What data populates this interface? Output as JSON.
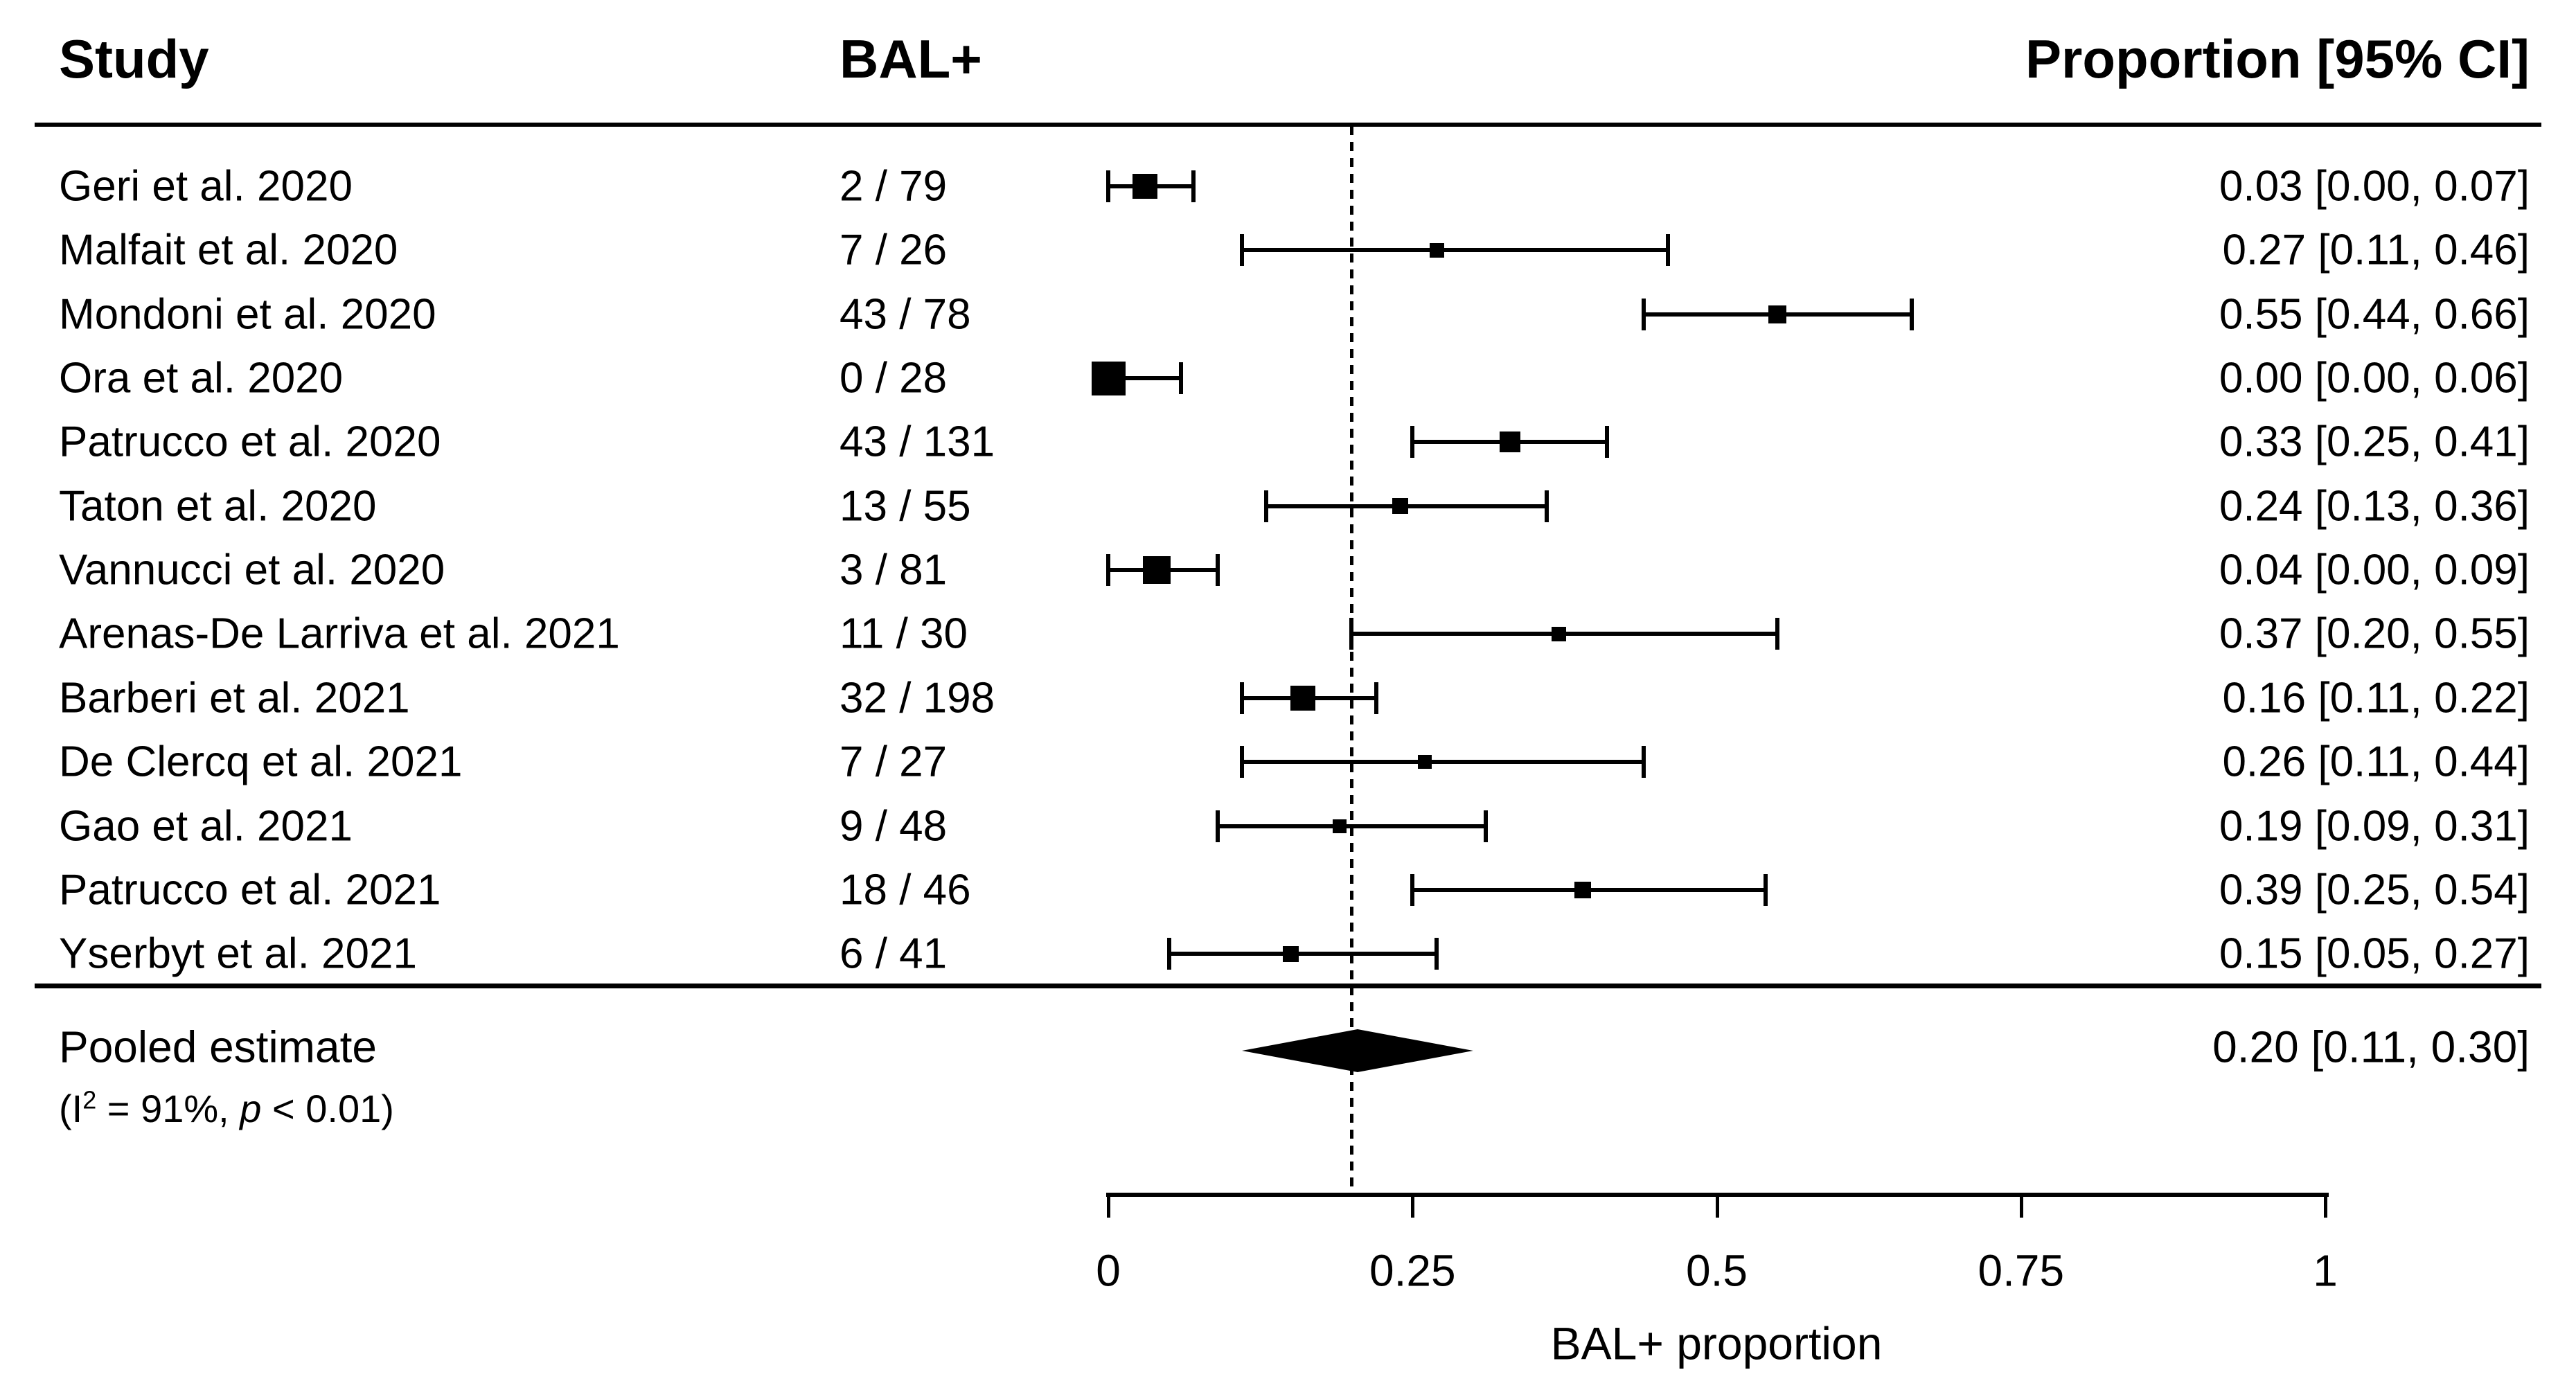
{
  "header": {
    "study": "Study",
    "bal": "BAL+",
    "proportion": "Proportion [95% CI]"
  },
  "axis": {
    "label": "BAL+ proportion",
    "xlim": [
      0,
      1
    ],
    "ticks": [
      {
        "value": 0,
        "label": "0"
      },
      {
        "value": 0.25,
        "label": "0.25"
      },
      {
        "value": 0.5,
        "label": "0.5"
      },
      {
        "value": 0.75,
        "label": "0.75"
      },
      {
        "value": 1,
        "label": "1"
      }
    ]
  },
  "pooled": {
    "label": "Pooled estimate",
    "estimate": 0.2,
    "ci_lo": 0.11,
    "ci_hi": 0.3,
    "ci_text": "0.20 [0.11, 0.30]",
    "het_open": "(I",
    "het_sup": "2",
    "het_mid": " =  91%, ",
    "het_p": "p",
    "het_close": " < 0.01)"
  },
  "colors": {
    "ink": "#000000",
    "background": "#ffffff"
  },
  "chart_data": {
    "type": "scatter",
    "variant": "forest-plot",
    "title": "",
    "xlabel": "BAL+ proportion",
    "xlim": [
      0,
      1
    ],
    "ref_line": 0.2,
    "grid": false,
    "studies": [
      {
        "name": "Geri et al. 2020",
        "bal": "2 / 79",
        "events": 2,
        "n": 79,
        "prop": 0.03,
        "lo": 0.0,
        "hi": 0.07,
        "ci_text": "0.03 [0.00, 0.07]",
        "marker_px": 36
      },
      {
        "name": "Malfait et al. 2020",
        "bal": "7 / 26",
        "events": 7,
        "n": 26,
        "prop": 0.27,
        "lo": 0.11,
        "hi": 0.46,
        "ci_text": "0.27 [0.11, 0.46]",
        "marker_px": 21
      },
      {
        "name": "Mondoni et al. 2020",
        "bal": "43 / 78",
        "events": 43,
        "n": 78,
        "prop": 0.55,
        "lo": 0.44,
        "hi": 0.66,
        "ci_text": "0.55 [0.44, 0.66]",
        "marker_px": 26
      },
      {
        "name": "Ora et al. 2020",
        "bal": "0 / 28",
        "events": 0,
        "n": 28,
        "prop": 0.0,
        "lo": 0.0,
        "hi": 0.06,
        "ci_text": "0.00 [0.00, 0.06]",
        "marker_px": 49
      },
      {
        "name": "Patrucco et al. 2020",
        "bal": "43 / 131",
        "events": 43,
        "n": 131,
        "prop": 0.33,
        "lo": 0.25,
        "hi": 0.41,
        "ci_text": "0.33 [0.25, 0.41]",
        "marker_px": 30
      },
      {
        "name": "Taton et al. 2020",
        "bal": "13 / 55",
        "events": 13,
        "n": 55,
        "prop": 0.24,
        "lo": 0.13,
        "hi": 0.36,
        "ci_text": "0.24 [0.13, 0.36]",
        "marker_px": 23
      },
      {
        "name": "Vannucci et al. 2020",
        "bal": "3 / 81",
        "events": 3,
        "n": 81,
        "prop": 0.04,
        "lo": 0.0,
        "hi": 0.09,
        "ci_text": "0.04 [0.00, 0.09]",
        "marker_px": 40
      },
      {
        "name": "Arenas-De Larriva et al. 2021",
        "bal": "11 / 30",
        "events": 11,
        "n": 30,
        "prop": 0.37,
        "lo": 0.2,
        "hi": 0.55,
        "ci_text": "0.37 [0.20, 0.55]",
        "marker_px": 21
      },
      {
        "name": "Barberi et al. 2021",
        "bal": "32 / 198",
        "events": 32,
        "n": 198,
        "prop": 0.16,
        "lo": 0.11,
        "hi": 0.22,
        "ci_text": "0.16 [0.11, 0.22]",
        "marker_px": 36
      },
      {
        "name": "De Clercq et al. 2021",
        "bal": "7 / 27",
        "events": 7,
        "n": 27,
        "prop": 0.26,
        "lo": 0.11,
        "hi": 0.44,
        "ci_text": "0.26 [0.11, 0.44]",
        "marker_px": 20
      },
      {
        "name": "Gao et al. 2021",
        "bal": "9 / 48",
        "events": 9,
        "n": 48,
        "prop": 0.19,
        "lo": 0.09,
        "hi": 0.31,
        "ci_text": "0.19 [0.09, 0.31]",
        "marker_px": 20
      },
      {
        "name": "Patrucco et al. 2021",
        "bal": "18 / 46",
        "events": 18,
        "n": 46,
        "prop": 0.39,
        "lo": 0.25,
        "hi": 0.54,
        "ci_text": "0.39 [0.25, 0.54]",
        "marker_px": 24
      },
      {
        "name": "Yserbyt et al. 2021",
        "bal": "6 / 41",
        "events": 6,
        "n": 41,
        "prop": 0.15,
        "lo": 0.05,
        "hi": 0.27,
        "ci_text": "0.15 [0.05, 0.27]",
        "marker_px": 23
      }
    ],
    "pooled": {
      "label": "Pooled estimate",
      "estimate": 0.2,
      "lo": 0.11,
      "hi": 0.3,
      "ci_text": "0.20 [0.11, 0.30]",
      "i_squared": "91%",
      "p_value": "< 0.01"
    }
  }
}
